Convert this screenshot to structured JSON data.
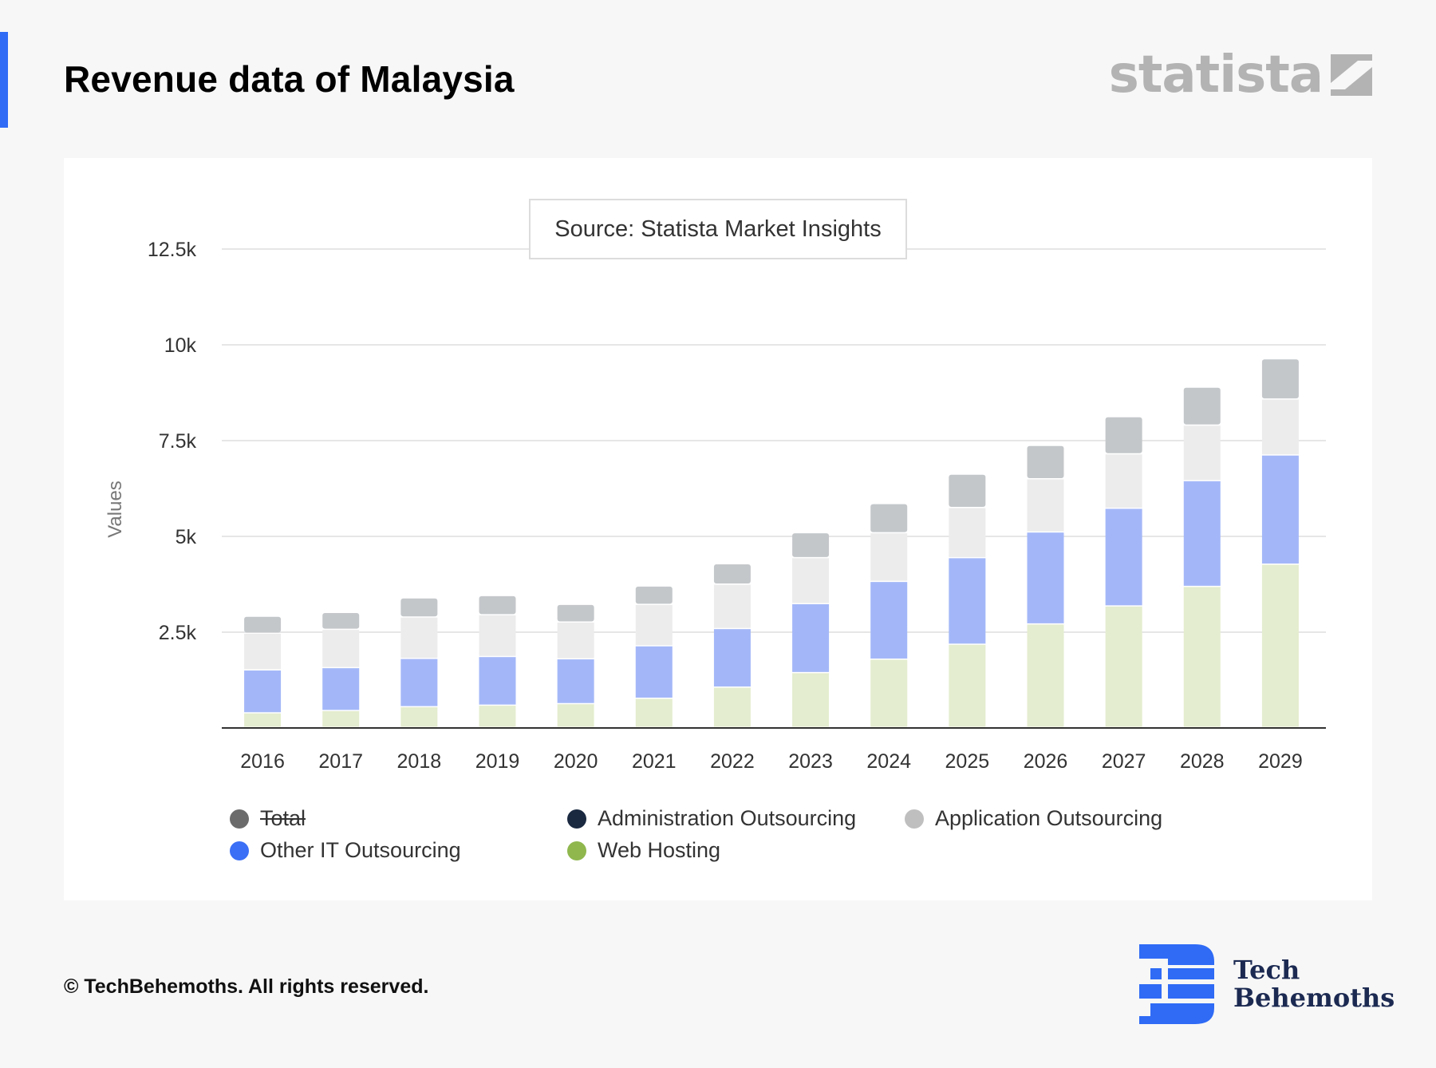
{
  "header": {
    "title": "Revenue data of Malaysia",
    "brand_logo": "statista",
    "accent_color": "#2f6bf5"
  },
  "source_box": "Source: Statista Market Insights",
  "legend": [
    {
      "label": "Total",
      "color": "#6b6b6b",
      "struck": true
    },
    {
      "label": "Administration Outsourcing",
      "color": "#1a2940",
      "struck": false
    },
    {
      "label": "Application Outsourcing",
      "color": "#bfbfbf",
      "struck": false
    },
    {
      "label": "Other IT Outsourcing",
      "color": "#3b6ff5",
      "struck": false
    },
    {
      "label": "Web Hosting",
      "color": "#8fb74e",
      "struck": false
    }
  ],
  "chart_data": {
    "type": "bar",
    "stacked": true,
    "title": "",
    "xlabel": "",
    "ylabel": "Values",
    "ylim": [
      0,
      12500
    ],
    "yticks": [
      2500,
      5000,
      7500,
      10000,
      12500
    ],
    "ytick_labels": [
      "2.5k",
      "5k",
      "7.5k",
      "10k",
      "12.5k"
    ],
    "grid": true,
    "legend_position": "bottom",
    "categories": [
      "2016",
      "2017",
      "2018",
      "2019",
      "2020",
      "2021",
      "2022",
      "2023",
      "2024",
      "2025",
      "2026",
      "2027",
      "2028",
      "2029"
    ],
    "series": [
      {
        "name": "Web Hosting",
        "color": "#e4edcf",
        "values": [
          380,
          440,
          540,
          580,
          620,
          760,
          1050,
          1430,
          1780,
          2170,
          2700,
          3170,
          3680,
          4260
        ]
      },
      {
        "name": "Other IT Outsourcing",
        "color": "#a3b7f8",
        "values": [
          1120,
          1120,
          1260,
          1270,
          1170,
          1370,
          1530,
          1800,
          2030,
          2260,
          2400,
          2550,
          2760,
          2850
        ]
      },
      {
        "name": "Application Outsourcing",
        "color": "#ececec",
        "values": [
          960,
          1000,
          1080,
          1090,
          960,
          1080,
          1160,
          1200,
          1270,
          1310,
          1390,
          1420,
          1450,
          1460
        ]
      },
      {
        "name": "Administration Outsourcing",
        "color": "#c4c7ca",
        "values": [
          440,
          440,
          500,
          500,
          460,
          480,
          530,
          650,
          760,
          870,
          870,
          970,
          990,
          1050
        ]
      }
    ]
  },
  "footer": {
    "copyright": "© TechBehemoths. All rights reserved.",
    "logo_line1": "Tech",
    "logo_line2": "Behemoths",
    "logo_color": "#2f6bf5"
  }
}
